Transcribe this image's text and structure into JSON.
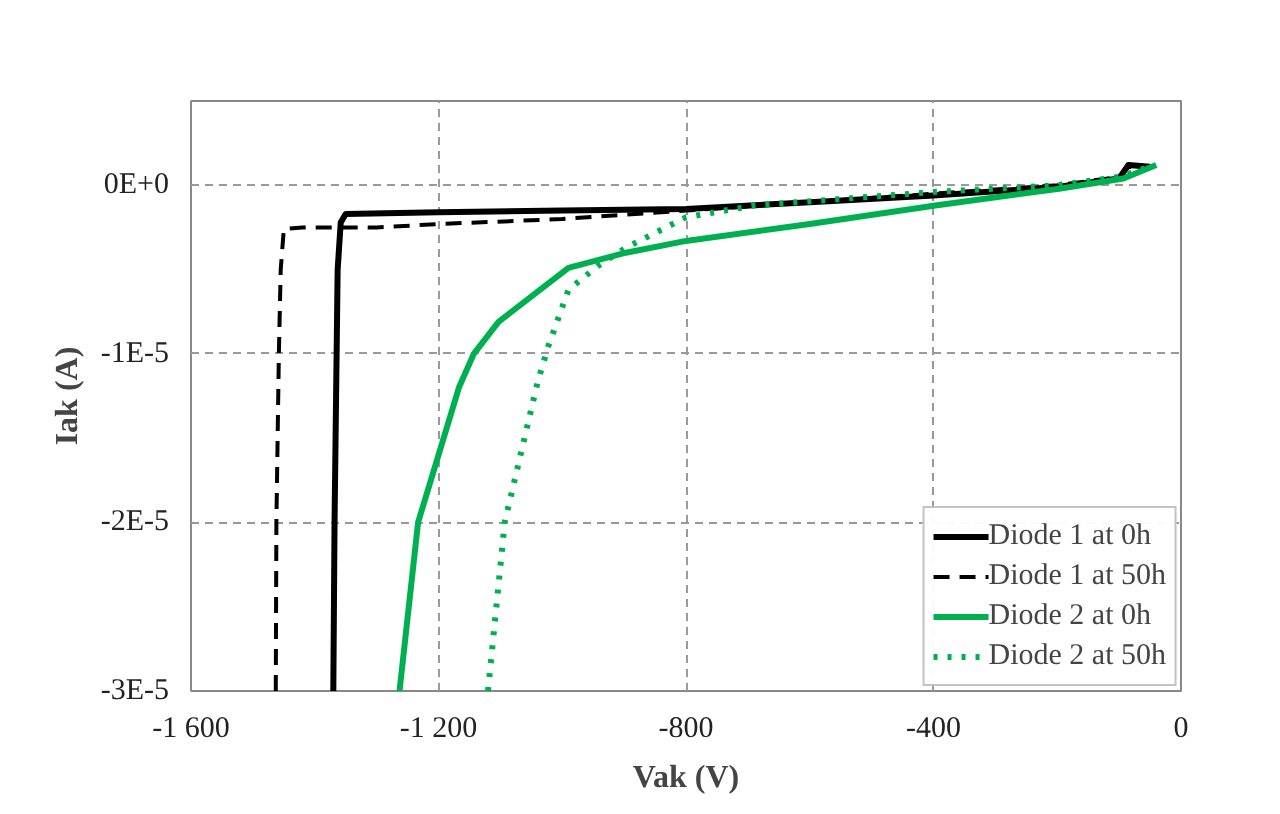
{
  "chart_data": {
    "type": "line",
    "xlabel": "Vak (V)",
    "ylabel": "Iak (A)",
    "xlim": [
      -1600,
      0
    ],
    "ylim": [
      -3e-05,
      5e-06
    ],
    "xticks": [
      {
        "value": -1600,
        "label": "-1 600"
      },
      {
        "value": -1200,
        "label": "-1 200"
      },
      -800,
      -400,
      0
    ],
    "yticks": [
      {
        "value": -3e-05,
        "label": "-3E-5"
      },
      {
        "value": -2e-05,
        "label": "-2E-5"
      },
      {
        "value": -1e-05,
        "label": "-1E-5"
      },
      {
        "value": 0,
        "label": "0E+0"
      }
    ],
    "grid": true,
    "legend": "bottom right",
    "marker": "none",
    "series": [
      {
        "name": "Diode 1 at 0h",
        "color": "#000000",
        "line_style": "solid",
        "x": [
          -1370,
          -1368,
          -1363,
          -1358,
          -1350,
          -1200,
          -1000,
          -800,
          -600,
          -400,
          -200,
          -100,
          -85,
          -50
        ],
        "values": [
          -3e-05,
          -2e-05,
          -5e-06,
          -2.2e-06,
          -1.7e-06,
          -1.6e-06,
          -1.5e-06,
          -1.4e-06,
          -1e-06,
          -6e-07,
          -1e-07,
          4e-07,
          1.2e-06,
          1.1e-06
        ]
      },
      {
        "name": "Diode 1 at 50h",
        "color": "#000000",
        "line_style": "dashed",
        "x": [
          -1463,
          -1462,
          -1458,
          -1455,
          -1450,
          -1420,
          -1300,
          -1200,
          -1000,
          -800,
          -600,
          -400,
          -200,
          -100,
          -85,
          -50
        ],
        "values": [
          -3e-05,
          -2e-05,
          -1e-05,
          -5e-06,
          -2.6e-06,
          -2.5e-06,
          -2.5e-06,
          -2.3e-06,
          -2e-06,
          -1.5e-06,
          -1e-06,
          -5e-07,
          0,
          5e-07,
          1.1e-06,
          1e-06
        ]
      },
      {
        "name": "Diode 2 at 0h",
        "color": "#00b050",
        "line_style": "solid",
        "x": [
          -1263,
          -1233,
          -1167,
          -1143,
          -1103,
          -990,
          -897,
          -800,
          -600,
          -397,
          -197,
          -93,
          -40
        ],
        "values": [
          -3e-05,
          -2e-05,
          -1.2e-05,
          -1e-05,
          -8.1e-06,
          -4.9e-06,
          -4e-06,
          -3.3e-06,
          -2.3e-06,
          -1.2e-06,
          -2e-07,
          4e-07,
          1.2e-06
        ]
      },
      {
        "name": "Diode 2 at 50h",
        "color": "#00b050",
        "line_style": "dotted",
        "x": [
          -1120,
          -1093,
          -1040,
          -1023,
          -990,
          -943,
          -897,
          -800,
          -690,
          -400,
          -200,
          -100,
          -50
        ],
        "values": [
          -3e-05,
          -2e-05,
          -1.17e-05,
          -9.6e-06,
          -6.2e-06,
          -4.8e-06,
          -3.7e-06,
          -1.9e-06,
          -1.2e-06,
          -4e-07,
          0,
          5e-07,
          1.1e-06
        ]
      }
    ]
  }
}
